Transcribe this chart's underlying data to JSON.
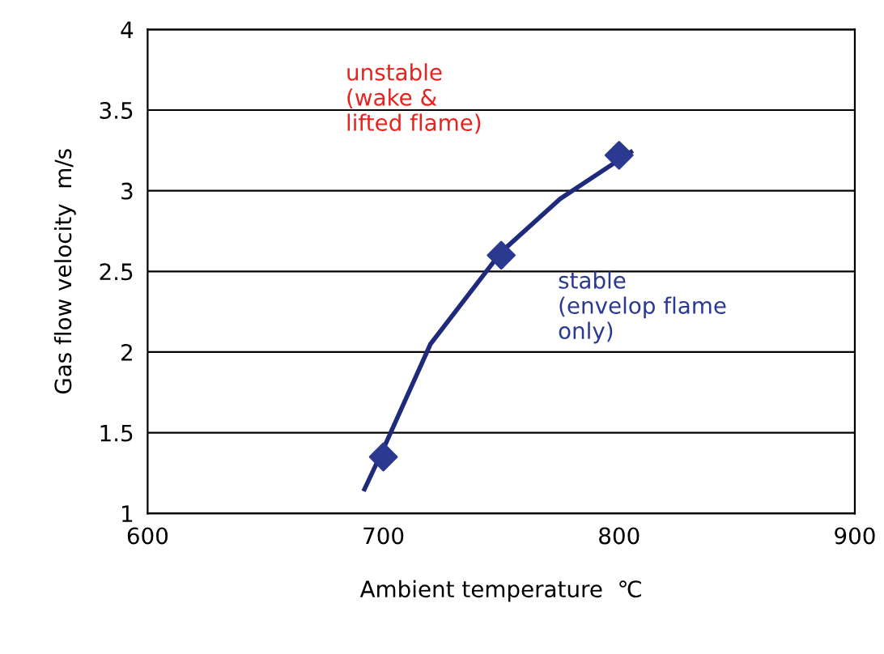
{
  "chart_data": {
    "type": "scatter",
    "xlabel": "Ambient temperature  ℃",
    "ylabel": "Gas flow velocity  m/s",
    "xlim": [
      600,
      900
    ],
    "xticks": [
      600,
      700,
      800,
      900
    ],
    "ylim": [
      1,
      4
    ],
    "yticks": [
      1,
      1.5,
      2,
      2.5,
      3,
      3.5,
      4
    ],
    "grid": "y",
    "series": [
      {
        "color": "#2b3990",
        "marker": "diamond",
        "x": [
          700,
          750,
          800
        ],
        "values": [
          1.35,
          2.6,
          3.22
        ]
      },
      {
        "type": "line",
        "color": "#1f2a7a",
        "marker": "none",
        "line_style": "solid",
        "x": [
          692,
          700,
          720,
          750,
          775,
          805
        ],
        "values": [
          1.15,
          1.4,
          2.05,
          2.62,
          2.95,
          3.24
        ]
      }
    ],
    "annotations": [
      "unstable\n(wake &\nlifted flame)",
      "stable\n(envelop flame\nonly)"
    ]
  }
}
